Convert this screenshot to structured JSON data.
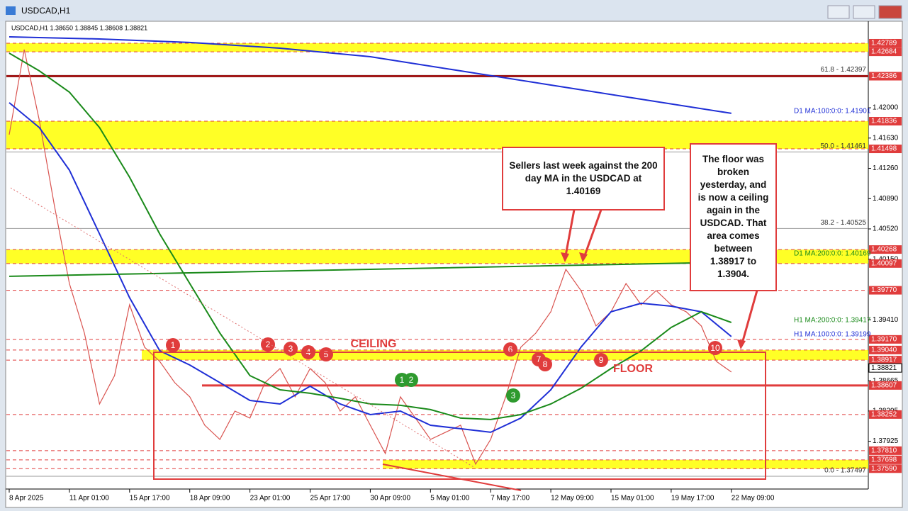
{
  "window_title": "USDCAD,H1",
  "info": "USDCAD,H1  1.38650 1.38845 1.38608 1.38821",
  "chart_data": {
    "type": "line",
    "ylim": [
      1.37376,
      1.43014
    ],
    "yticks": [
      {
        "value": 1.42,
        "label": "1.42000"
      },
      {
        "value": 1.4163,
        "label": "1.41630"
      },
      {
        "value": 1.4126,
        "label": "1.41260"
      },
      {
        "value": 1.4089,
        "label": "1.40890"
      },
      {
        "value": 1.4052,
        "label": "1.40520"
      },
      {
        "value": 1.4015,
        "label": "1.40150"
      },
      {
        "value": 1.3941,
        "label": "1.39410"
      },
      {
        "value": 1.38665,
        "label": "1.38665"
      },
      {
        "value": 1.38295,
        "label": "1.38295"
      },
      {
        "value": 1.37925,
        "label": "1.37925"
      }
    ],
    "xticks": [
      "8 Apr 2025",
      "11 Apr 01:00",
      "15 Apr 17:00",
      "18 Apr 09:00",
      "23 Apr 01:00",
      "25 Apr 17:00",
      "30 Apr 09:00",
      "5 May 01:00",
      "7 May 17:00",
      "12 May 09:00",
      "15 May 01:00",
      "19 May 17:00",
      "22 May 09:00"
    ],
    "series": [
      {
        "color": "#d9534f",
        "values": [
          1.41672,
          1.42711,
          1.41845,
          1.40806,
          1.39853,
          1.39247,
          1.38381,
          1.38727,
          1.39593,
          1.39074,
          1.38901,
          1.38641,
          1.38468,
          1.38121,
          1.37948,
          1.38294,
          1.38208,
          1.38641,
          1.38814,
          1.38468,
          1.38814,
          1.38641,
          1.38294,
          1.38468,
          1.38121,
          1.37775,
          1.38468,
          1.38208,
          1.37948,
          1.38035,
          1.38121,
          1.37645,
          1.37948,
          1.38468,
          1.39074,
          1.39247,
          1.39507,
          1.40026,
          1.39767,
          1.39334,
          1.39507,
          1.39853,
          1.39593,
          1.39767,
          1.39593,
          1.39507,
          1.39334,
          1.38901,
          1.38771
        ]
      },
      {
        "name": "H1 MA:100:0:0: 1.39199",
        "color": "#1f2fd6",
        "values": [
          1.42062,
          1.41758,
          1.41239,
          1.40459,
          1.3968,
          1.39031,
          1.38857,
          1.38641,
          1.38424,
          1.38381,
          1.38598,
          1.38381,
          1.38251,
          1.38294,
          1.38121,
          1.38078,
          1.38035,
          1.38208,
          1.38554,
          1.39074,
          1.39507,
          1.39611,
          1.39576,
          1.39507,
          1.39204
        ]
      },
      {
        "name": "H1 MA:200:0:0: 1.39417",
        "color": "#1a8a1a",
        "values": [
          1.42668,
          1.42451,
          1.42191,
          1.41758,
          1.41152,
          1.40459,
          1.39853,
          1.39247,
          1.38727,
          1.38554,
          1.38511,
          1.3845,
          1.38381,
          1.38364,
          1.38312,
          1.38208,
          1.38191,
          1.38251,
          1.38381,
          1.38572,
          1.38814,
          1.39031,
          1.39316,
          1.39507,
          1.39377
        ]
      },
      {
        "name": "D1 MA:100:0:0: 1.41901",
        "color": "#1f2fd6",
        "values": [
          1.42867,
          1.42841,
          1.42798,
          1.42728,
          1.42624,
          1.42451,
          1.42278,
          1.42105,
          1.41932
        ]
      },
      {
        "name": "D1 MA:200:0:0: 1.40169",
        "color": "#1a8a1a",
        "values": [
          1.3994,
          1.40026,
          1.40113
        ]
      }
    ],
    "levels": [
      {
        "value": 1.42789
      },
      {
        "value": 1.42684
      },
      {
        "value": 1.42386,
        "style": "solid"
      },
      {
        "value": 1.41836
      },
      {
        "value": 1.41498
      },
      {
        "value": 1.40268
      },
      {
        "value": 1.40097
      },
      {
        "value": 1.3977,
        "label": "1.39770"
      },
      {
        "value": 1.3917,
        "label": "1.39170"
      },
      {
        "value": 1.3904,
        "label": "1.39040"
      },
      {
        "value": 1.38917
      },
      {
        "value": 1.38607,
        "style": "solid"
      },
      {
        "value": 1.38252
      },
      {
        "value": 1.3781,
        "label": "1.37810"
      },
      {
        "value": 1.37698
      },
      {
        "value": 1.3759,
        "label": "1.37590"
      }
    ],
    "last_price": 1.38821,
    "zones": [
      [
        1.42684,
        1.42789
      ],
      [
        1.41498,
        1.41836
      ],
      [
        1.40097,
        1.40268
      ],
      [
        1.38917,
        1.3904
      ],
      [
        1.3759,
        1.37698
      ]
    ],
    "fib_levels": [
      {
        "value": 1.42397,
        "label": "61.8 - 1.42397"
      },
      {
        "value": 1.41461,
        "label": "50.0 - 1.41461"
      },
      {
        "value": 1.40525,
        "label": "38.2 - 1.40525"
      },
      {
        "value": 1.37497,
        "label": "0.0 - 1.37497"
      }
    ],
    "markers": [
      {
        "label": "1",
        "color": "#e03c3c"
      },
      {
        "label": "2",
        "color": "#e03c3c"
      },
      {
        "label": "3",
        "color": "#e03c3c"
      },
      {
        "label": "4",
        "color": "#e03c3c"
      },
      {
        "label": "5",
        "color": "#e03c3c"
      },
      {
        "label": "6",
        "color": "#e03c3c"
      },
      {
        "label": "7",
        "color": "#e03c3c"
      },
      {
        "label": "8",
        "color": "#e03c3c"
      },
      {
        "label": "9",
        "color": "#e03c3c"
      },
      {
        "label": "10",
        "color": "#e03c3c"
      },
      {
        "label": "1",
        "color": "#2e9a2e"
      },
      {
        "label": "2",
        "color": "#2e9a2e"
      },
      {
        "label": "3",
        "color": "#2e9a2e"
      }
    ],
    "annotations": [
      "CEILING",
      "FLOOR",
      "Sellers last week against the 200 day MA in the USDCAD at 1.40169",
      "The floor was broken yesterday, and is now a ceiling again in the USDCAD. That area comes between 1.38917 to 1.3904."
    ]
  }
}
